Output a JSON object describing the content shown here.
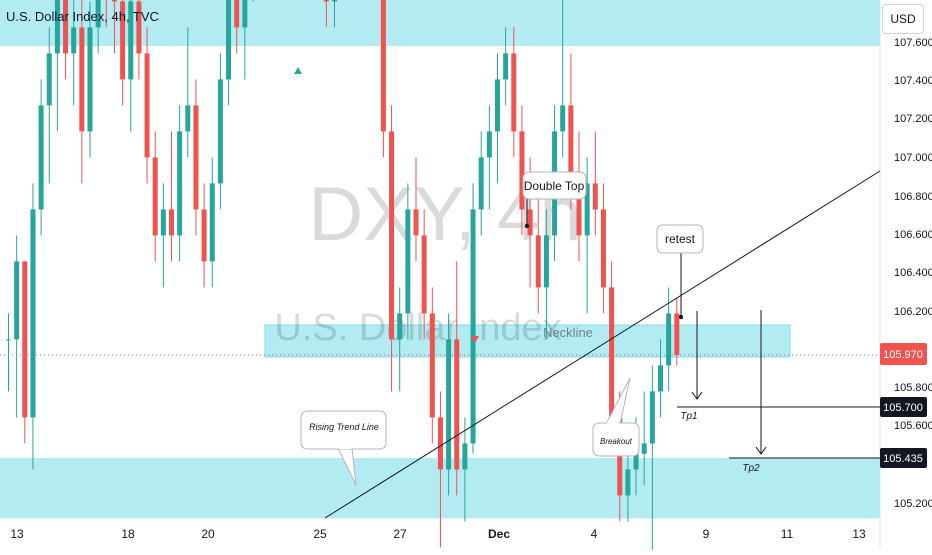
{
  "header": {
    "title": "U.S. Dollar Index, 4h, TVC",
    "currency_button": "USD"
  },
  "watermark": {
    "symbol": "DXY, 4h",
    "name": "U.S. Dollar Index"
  },
  "colors": {
    "up": "#26a69a",
    "down": "#ef5350",
    "zone": "#b2ebf2",
    "zone_border": "#80deea",
    "text": "#131722"
  },
  "chart_data": {
    "type": "candlestick",
    "y_axis_ticks": [
      "107.600",
      "107.400",
      "107.200",
      "107.000",
      "106.800",
      "106.600",
      "106.400",
      "106.200",
      "105.800",
      "105.600",
      "105.200"
    ],
    "x_axis_ticks": [
      "13",
      "18",
      "20",
      "25",
      "27",
      "Dec",
      "4",
      "9",
      "11",
      "13"
    ],
    "last_price": "105.970",
    "price_labels": [
      "105.700",
      "105.435"
    ],
    "annotations": [
      "Double Top",
      "retest",
      "Neckline",
      "Rising Trend Line",
      "Breakout",
      "Tp1",
      "Tp2"
    ],
    "candles": [
      [
        106.0,
        106.05,
        105.9,
        106.0
      ],
      [
        106.0,
        106.2,
        105.85,
        106.15
      ],
      [
        106.15,
        106.15,
        105.8,
        105.85
      ],
      [
        105.85,
        106.3,
        105.75,
        106.25
      ],
      [
        106.25,
        106.5,
        106.2,
        106.45
      ],
      [
        106.45,
        106.6,
        106.3,
        106.55
      ],
      [
        106.55,
        106.95,
        106.4,
        106.7
      ],
      [
        106.7,
        106.75,
        106.5,
        106.55
      ],
      [
        106.55,
        106.8,
        106.45,
        106.6
      ],
      [
        106.6,
        106.75,
        106.3,
        106.4
      ],
      [
        106.4,
        106.65,
        106.35,
        106.6
      ],
      [
        106.6,
        106.8,
        106.55,
        106.75
      ],
      [
        106.75,
        106.95,
        106.6,
        106.7
      ],
      [
        106.7,
        106.85,
        106.55,
        106.65
      ],
      [
        106.65,
        106.8,
        106.45,
        106.5
      ],
      [
        106.5,
        106.7,
        106.4,
        106.65
      ],
      [
        106.65,
        106.75,
        106.5,
        106.55
      ],
      [
        106.55,
        106.6,
        106.3,
        106.35
      ],
      [
        106.35,
        106.4,
        106.15,
        106.2
      ],
      [
        106.2,
        106.3,
        106.1,
        106.25
      ],
      [
        106.25,
        106.4,
        106.15,
        106.2
      ],
      [
        106.2,
        106.45,
        106.15,
        106.4
      ],
      [
        106.4,
        106.6,
        106.35,
        106.45
      ],
      [
        106.45,
        106.5,
        106.2,
        106.25
      ],
      [
        106.25,
        106.3,
        106.1,
        106.15
      ],
      [
        106.15,
        106.35,
        106.1,
        106.3
      ],
      [
        106.3,
        106.55,
        106.25,
        106.5
      ],
      [
        106.5,
        106.75,
        106.45,
        106.7
      ],
      [
        106.7,
        106.8,
        106.55,
        106.6
      ],
      [
        106.6,
        106.75,
        106.5,
        106.7
      ],
      [
        106.7,
        106.95,
        106.65,
        106.9
      ],
      [
        106.9,
        107.1,
        106.85,
        107.05
      ],
      [
        107.05,
        107.4,
        107.0,
        107.35
      ],
      [
        107.35,
        107.75,
        107.3,
        107.7
      ],
      [
        107.7,
        107.95,
        107.55,
        107.65
      ],
      [
        107.65,
        107.7,
        107.35,
        107.4
      ],
      [
        107.4,
        107.45,
        106.95,
        107.0
      ],
      [
        107.0,
        107.05,
        106.8,
        106.9
      ],
      [
        106.9,
        107.1,
        106.85,
        107.0
      ],
      [
        107.0,
        107.1,
        106.6,
        106.65
      ],
      [
        106.65,
        107.05,
        106.6,
        107.0
      ],
      [
        107.0,
        107.2,
        106.95,
        107.1
      ],
      [
        107.1,
        107.55,
        107.05,
        107.15
      ],
      [
        107.15,
        107.3,
        107.0,
        107.05
      ],
      [
        107.05,
        107.25,
        106.95,
        107.0
      ],
      [
        107.0,
        107.05,
        106.75,
        106.8
      ],
      [
        106.8,
        106.85,
        106.35,
        106.4
      ],
      [
        106.4,
        106.45,
        105.9,
        106.0
      ],
      [
        106.0,
        106.1,
        105.9,
        106.05
      ],
      [
        106.05,
        106.3,
        106.0,
        106.25
      ],
      [
        106.25,
        106.35,
        106.15,
        106.2
      ],
      [
        106.2,
        106.25,
        106.0,
        106.05
      ],
      [
        106.05,
        106.1,
        105.8,
        105.85
      ],
      [
        105.85,
        105.9,
        105.6,
        105.75
      ],
      [
        105.75,
        106.05,
        105.7,
        106.0
      ],
      [
        106.0,
        106.15,
        105.7,
        105.75
      ],
      [
        105.75,
        105.85,
        105.65,
        105.8
      ],
      [
        105.8,
        106.3,
        105.78,
        106.25
      ],
      [
        106.25,
        106.4,
        106.2,
        106.35
      ],
      [
        106.35,
        106.45,
        106.25,
        106.4
      ],
      [
        106.4,
        106.55,
        106.3,
        106.5
      ],
      [
        106.5,
        106.6,
        106.45,
        106.55
      ],
      [
        106.55,
        106.6,
        106.35,
        106.4
      ],
      [
        106.4,
        106.45,
        106.2,
        106.25
      ],
      [
        106.25,
        106.35,
        106.1,
        106.2
      ],
      [
        106.2,
        106.3,
        106.05,
        106.1
      ],
      [
        106.1,
        106.25,
        106.0,
        106.2
      ],
      [
        106.2,
        106.45,
        106.15,
        106.4
      ],
      [
        106.4,
        106.7,
        106.35,
        106.45
      ],
      [
        106.45,
        106.55,
        106.25,
        106.3
      ],
      [
        106.3,
        106.4,
        106.15,
        106.2
      ],
      [
        106.2,
        106.35,
        106.05,
        106.3
      ],
      [
        106.3,
        106.4,
        106.2,
        106.25
      ],
      [
        106.25,
        106.3,
        106.05,
        106.1
      ],
      [
        106.1,
        106.15,
        105.8,
        105.85
      ],
      [
        105.85,
        105.9,
        105.65,
        105.7
      ],
      [
        105.7,
        105.8,
        105.65,
        105.75
      ],
      [
        105.75,
        105.85,
        105.7,
        105.78
      ],
      [
        105.78,
        105.9,
        105.72,
        105.8
      ],
      [
        105.8,
        105.95,
        105.55,
        105.9
      ],
      [
        105.9,
        106.0,
        105.85,
        105.95
      ],
      [
        105.95,
        106.1,
        105.9,
        106.05
      ],
      [
        106.05,
        106.08,
        105.95,
        105.97
      ]
    ]
  }
}
